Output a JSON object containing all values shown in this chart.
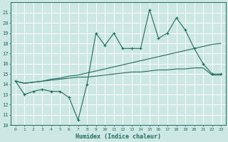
{
  "x": [
    0,
    1,
    2,
    3,
    4,
    5,
    6,
    7,
    8,
    9,
    10,
    11,
    12,
    13,
    14,
    15,
    16,
    17,
    18,
    19,
    20,
    21,
    22,
    23
  ],
  "y_main": [
    14.3,
    13.0,
    13.3,
    13.5,
    13.3,
    13.3,
    12.7,
    10.5,
    14.0,
    19.0,
    17.8,
    19.0,
    17.5,
    17.5,
    17.5,
    21.3,
    18.5,
    19.0,
    20.5,
    19.3,
    17.5,
    16.0,
    15.0,
    15.0
  ],
  "y_trend1": [
    14.3,
    14.1,
    14.2,
    14.3,
    14.5,
    14.6,
    14.8,
    14.9,
    15.1,
    15.3,
    15.5,
    15.7,
    15.9,
    16.1,
    16.3,
    16.5,
    16.7,
    16.9,
    17.1,
    17.3,
    17.5,
    17.7,
    17.9,
    18.0
  ],
  "y_trend2": [
    14.3,
    14.1,
    14.2,
    14.3,
    14.4,
    14.5,
    14.6,
    14.7,
    14.7,
    14.8,
    14.9,
    15.0,
    15.1,
    15.2,
    15.2,
    15.3,
    15.4,
    15.4,
    15.5,
    15.5,
    15.6,
    15.6,
    14.9,
    14.9
  ],
  "bg_color": "#cde8e4",
  "grid_color": "#b0d8d2",
  "line_color": "#1e6b60",
  "xlabel": "Humidex (Indice chaleur)",
  "ylim": [
    10,
    22
  ],
  "xlim": [
    -0.5,
    23.5
  ],
  "yticks": [
    10,
    11,
    12,
    13,
    14,
    15,
    16,
    17,
    18,
    19,
    20,
    21
  ],
  "xticks": [
    0,
    1,
    2,
    3,
    4,
    5,
    6,
    7,
    8,
    9,
    10,
    11,
    12,
    13,
    14,
    15,
    16,
    17,
    18,
    19,
    20,
    21,
    22,
    23
  ]
}
